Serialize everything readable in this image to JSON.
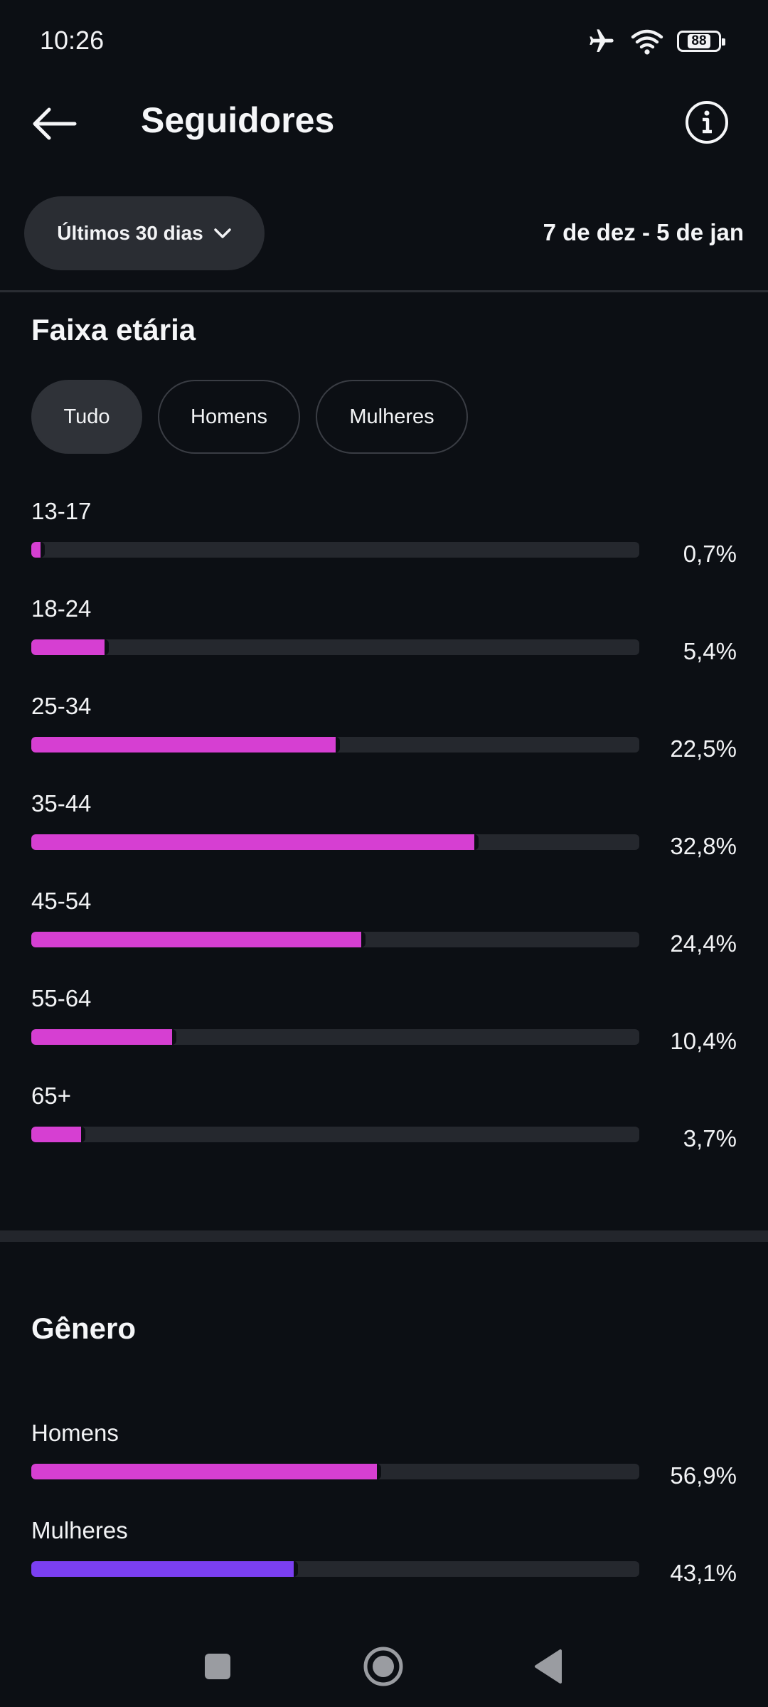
{
  "status_bar": {
    "time": "10:26",
    "battery": "88",
    "icons": [
      "airplane-mode-icon",
      "wifi-icon",
      "battery-icon"
    ]
  },
  "header": {
    "title": "Seguidores",
    "back_icon": "arrow-left-icon",
    "info_icon": "info-icon"
  },
  "filters": {
    "period_label": "Últimos 30 dias",
    "date_range": "7 de dez - 5 de jan"
  },
  "age_section": {
    "title": "Faixa etária",
    "tabs": [
      {
        "label": "Tudo",
        "active": true
      },
      {
        "label": "Homens",
        "active": false
      },
      {
        "label": "Mulheres",
        "active": false
      }
    ],
    "rows": [
      {
        "label": "13-17",
        "value_text": "0,7%",
        "value": 0.7
      },
      {
        "label": "18-24",
        "value_text": "5,4%",
        "value": 5.4
      },
      {
        "label": "25-34",
        "value_text": "22,5%",
        "value": 22.5
      },
      {
        "label": "35-44",
        "value_text": "32,8%",
        "value": 32.8
      },
      {
        "label": "45-54",
        "value_text": "24,4%",
        "value": 24.4
      },
      {
        "label": "55-64",
        "value_text": "10,4%",
        "value": 10.4
      },
      {
        "label": "65+",
        "value_text": "3,7%",
        "value": 3.7
      }
    ]
  },
  "gender_section": {
    "title": "Gênero",
    "rows": [
      {
        "label": "Homens",
        "value_text": "56,9%",
        "value": 56.9,
        "color": "#d63fd2"
      },
      {
        "label": "Mulheres",
        "value_text": "43,1%",
        "value": 43.1,
        "color": "#7b3ff2"
      }
    ]
  },
  "colors": {
    "background": "#0c0f14",
    "age_bar": "#d63fd2",
    "track": "#25282e",
    "men": "#d63fd2",
    "women": "#7b3ff2"
  },
  "nav_bar": {
    "icons": [
      "recents-square-icon",
      "home-circle-icon",
      "back-triangle-icon"
    ]
  }
}
